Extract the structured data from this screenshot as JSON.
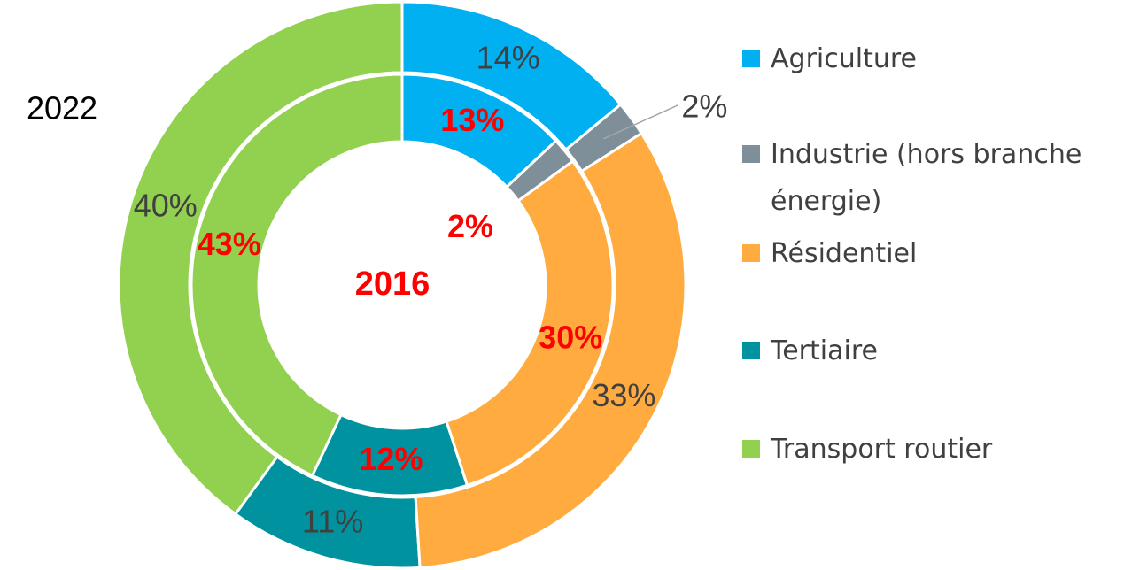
{
  "chart_data": {
    "type": "donut",
    "categories": [
      "Agriculture",
      "Industrie (hors branche énergie)",
      "Résidentiel",
      "Tertiaire",
      "Transport routier"
    ],
    "colors": [
      "#00b0f0",
      "#7f8f9a",
      "#ffab40",
      "#00939f",
      "#92d050"
    ],
    "series": [
      {
        "name": "2022",
        "values": [
          14,
          2,
          33,
          11,
          40
        ],
        "value_labels": [
          "14%",
          "2%",
          "33%",
          "11%",
          "40%"
        ]
      },
      {
        "name": "2016",
        "values": [
          13,
          2,
          30,
          12,
          43
        ],
        "value_labels": [
          "13%",
          "2%",
          "30%",
          "12%",
          "43%"
        ]
      }
    ]
  }
}
